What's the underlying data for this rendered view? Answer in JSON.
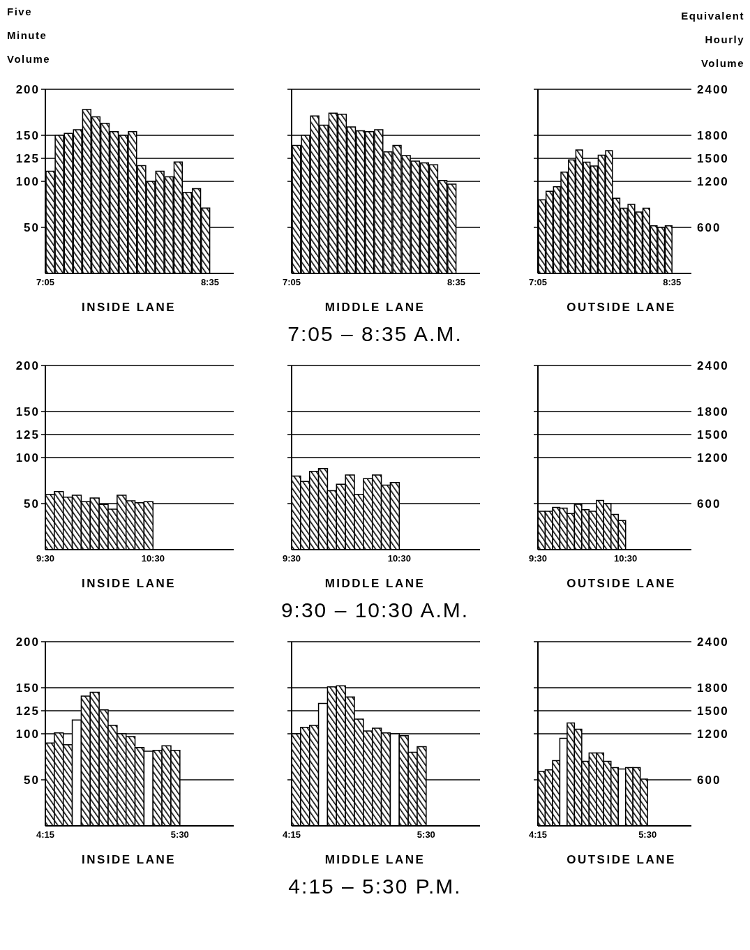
{
  "chart_data": [
    {
      "type": "histogram",
      "ylabel": "Five Minute Volume",
      "xlabel": "INSIDE LANE",
      "bins": [
        7.0833,
        7.1667,
        7.25,
        7.3333,
        7.4167,
        7.5,
        7.5833,
        7.6667,
        7.75,
        7.8333,
        7.9167,
        8,
        8.0833,
        8.1667,
        8.25,
        8.3333,
        8.4167,
        8.5,
        8.5833
      ],
      "series": [
        {
          "color": "#000000",
          "values": [
            111,
            150,
            152,
            156,
            178,
            170,
            163,
            154,
            150,
            154,
            117,
            100,
            111,
            105,
            121,
            88,
            92,
            71
          ]
        }
      ],
      "xlim": [
        7.0833,
        8.8
      ],
      "xticks": [
        {
          "value": 7.0833,
          "label": "7:05"
        },
        {
          "value": 8.5833,
          "label": "8:35"
        }
      ],
      "ylim": [
        0,
        200
      ],
      "yticks": [
        50,
        100,
        125,
        150,
        200
      ],
      "grid": "y"
    },
    {
      "type": "histogram",
      "xlabel": "MIDDLE LANE",
      "annotations": [
        "7:05 – 8:35 A.M."
      ],
      "bins": [
        7.0833,
        7.1667,
        7.25,
        7.3333,
        7.4167,
        7.5,
        7.5833,
        7.6667,
        7.75,
        7.8333,
        7.9167,
        8,
        8.0833,
        8.1667,
        8.25,
        8.3333,
        8.4167,
        8.5,
        8.5833
      ],
      "series": [
        {
          "color": "#000000",
          "values": [
            139,
            150,
            171,
            161,
            174,
            173,
            159,
            155,
            154,
            156,
            132,
            139,
            128,
            122,
            120,
            118,
            101,
            97
          ]
        }
      ],
      "xlim": [
        7.0833,
        8.8
      ],
      "xticks": [
        {
          "value": 7.0833,
          "label": "7:05"
        },
        {
          "value": 8.5833,
          "label": "8:35"
        }
      ],
      "ylim": [
        0,
        200
      ],
      "yticks": [
        50,
        100,
        125,
        150,
        200
      ],
      "tick_labels": "x",
      "grid": "y"
    },
    {
      "type": "histogram",
      "y2label": "Equivalent Hourly Volume",
      "xlabel": "OUTSIDE LANE",
      "bins": [
        7.0833,
        7.1667,
        7.25,
        7.3333,
        7.4167,
        7.5,
        7.5833,
        7.6667,
        7.75,
        7.8333,
        7.9167,
        8,
        8.0833,
        8.1667,
        8.25,
        8.3333,
        8.4167,
        8.5,
        8.5833
      ],
      "series": [
        {
          "color": "#000000",
          "axis": "y2",
          "values": [
            960,
            1070,
            1130,
            1320,
            1480,
            1610,
            1450,
            1400,
            1540,
            1600,
            980,
            850,
            900,
            800,
            850,
            620,
            600,
            620
          ]
        }
      ],
      "xlim": [
        7.0833,
        8.8
      ],
      "xticks": [
        {
          "value": 7.0833,
          "label": "7:05"
        },
        {
          "value": 8.5833,
          "label": "8:35"
        }
      ],
      "y2lim": [
        0,
        2400
      ],
      "y2ticks": [
        600,
        1200,
        1500,
        1800,
        2400
      ],
      "grid": "y"
    },
    {
      "type": "histogram",
      "xlabel": "INSIDE LANE",
      "bins": [
        9.5,
        9.5833,
        9.6667,
        9.75,
        9.8333,
        9.9167,
        10,
        10.0833,
        10.1667,
        10.25,
        10.3333,
        10.4167,
        10.5
      ],
      "series": [
        {
          "color": "#000000",
          "values": [
            60,
            63,
            57,
            59,
            52,
            56,
            49,
            44,
            59,
            53,
            51,
            52
          ]
        }
      ],
      "xlim": [
        9.5,
        11.25
      ],
      "xticks": [
        {
          "value": 9.5,
          "label": "9:30"
        },
        {
          "value": 10.5,
          "label": "10:30"
        }
      ],
      "ylim": [
        0,
        200
      ],
      "yticks": [
        50,
        100,
        125,
        150,
        200
      ],
      "grid": "y"
    },
    {
      "type": "histogram",
      "xlabel": "MIDDLE LANE",
      "annotations": [
        "9:30 – 10:30 A.M."
      ],
      "bins": [
        9.5,
        9.5833,
        9.6667,
        9.75,
        9.8333,
        9.9167,
        10,
        10.0833,
        10.1667,
        10.25,
        10.3333,
        10.4167,
        10.5
      ],
      "series": [
        {
          "color": "#000000",
          "values": [
            80,
            74,
            85,
            88,
            64,
            71,
            81,
            60,
            77,
            81,
            70,
            73
          ]
        }
      ],
      "xlim": [
        9.5,
        11.25
      ],
      "xticks": [
        {
          "value": 9.5,
          "label": "9:30"
        },
        {
          "value": 10.5,
          "label": "10:30"
        }
      ],
      "ylim": [
        0,
        200
      ],
      "yticks": [
        50,
        100,
        125,
        150,
        200
      ],
      "tick_labels": "x",
      "grid": "y"
    },
    {
      "type": "histogram",
      "xlabel": "OUTSIDE LANE",
      "bins": [
        9.5,
        9.5833,
        9.6667,
        9.75,
        9.8333,
        9.9167,
        10,
        10.0833,
        10.1667,
        10.25,
        10.3333,
        10.4167,
        10.5
      ],
      "series": [
        {
          "color": "#000000",
          "axis": "y2",
          "values": [
            500,
            500,
            550,
            540,
            470,
            590,
            520,
            500,
            640,
            600,
            460,
            380
          ]
        }
      ],
      "xlim": [
        9.5,
        11.25
      ],
      "xticks": [
        {
          "value": 9.5,
          "label": "9:30"
        },
        {
          "value": 10.5,
          "label": "10:30"
        }
      ],
      "y2lim": [
        0,
        2400
      ],
      "y2ticks": [
        600,
        1200,
        1500,
        1800,
        2400
      ],
      "grid": "y"
    },
    {
      "type": "histogram",
      "xlabel": "INSIDE LANE",
      "bins": [
        4.25,
        4.3333,
        4.4167,
        4.5,
        4.5833,
        4.6667,
        4.75,
        4.8333,
        4.9167,
        5,
        5.0833,
        5.1667,
        5.25,
        5.3333,
        5.4167,
        5.5
      ],
      "series": [
        {
          "color": "#000000",
          "colors": [
            "#000000",
            "#000000",
            "#000000",
            "#ffffff",
            "#000000",
            "#000000",
            "#000000",
            "#000000",
            "#000000",
            "#000000",
            "#000000",
            "#ffffff",
            "#000000",
            "#000000",
            "#000000"
          ],
          "values": [
            90,
            101,
            88,
            115,
            141,
            145,
            126,
            109,
            100,
            97,
            85,
            81,
            82,
            87,
            82
          ]
        }
      ],
      "xlim": [
        4.25,
        6
      ],
      "xticks": [
        {
          "value": 4.25,
          "label": "4:15"
        },
        {
          "value": 5.5,
          "label": "5:30"
        }
      ],
      "ylim": [
        0,
        200
      ],
      "yticks": [
        50,
        100,
        125,
        150,
        200
      ],
      "grid": "y"
    },
    {
      "type": "histogram",
      "xlabel": "MIDDLE LANE",
      "annotations": [
        "4:15 – 5:30 P.M."
      ],
      "bins": [
        4.25,
        4.3333,
        4.4167,
        4.5,
        4.5833,
        4.6667,
        4.75,
        4.8333,
        4.9167,
        5,
        5.0833,
        5.1667,
        5.25,
        5.3333,
        5.4167,
        5.5
      ],
      "series": [
        {
          "color": "#000000",
          "colors": [
            "#000000",
            "#000000",
            "#000000",
            "#ffffff",
            "#000000",
            "#000000",
            "#000000",
            "#000000",
            "#000000",
            "#000000",
            "#000000",
            "#ffffff",
            "#000000",
            "#000000",
            "#000000"
          ],
          "values": [
            100,
            107,
            109,
            133,
            151,
            152,
            140,
            116,
            103,
            106,
            101,
            100,
            98,
            80,
            86
          ]
        }
      ],
      "xlim": [
        4.25,
        6
      ],
      "xticks": [
        {
          "value": 4.25,
          "label": "4:15"
        },
        {
          "value": 5.5,
          "label": "5:30"
        }
      ],
      "ylim": [
        0,
        200
      ],
      "yticks": [
        50,
        100,
        125,
        150,
        200
      ],
      "tick_labels": "x",
      "grid": "y"
    },
    {
      "type": "histogram",
      "xlabel": "OUTSIDE LANE",
      "bins": [
        4.25,
        4.3333,
        4.4167,
        4.5,
        4.5833,
        4.6667,
        4.75,
        4.8333,
        4.9167,
        5,
        5.0833,
        5.1667,
        5.25,
        5.3333,
        5.4167,
        5.5
      ],
      "series": [
        {
          "color": "#000000",
          "axis": "y2",
          "colors": [
            "#000000",
            "#000000",
            "#000000",
            "#ffffff",
            "#000000",
            "#000000",
            "#000000",
            "#000000",
            "#000000",
            "#000000",
            "#000000",
            "#ffffff",
            "#000000",
            "#000000",
            "#000000"
          ],
          "values": [
            710,
            730,
            850,
            1140,
            1340,
            1260,
            840,
            950,
            950,
            840,
            760,
            740,
            760,
            760,
            610
          ]
        }
      ],
      "xlim": [
        4.25,
        6
      ],
      "xticks": [
        {
          "value": 4.25,
          "label": "4:15"
        },
        {
          "value": 5.5,
          "label": "5:30"
        }
      ],
      "y2lim": [
        0,
        2400
      ],
      "y2ticks": [
        600,
        1200,
        1500,
        1800,
        2400
      ],
      "grid": "y"
    }
  ]
}
